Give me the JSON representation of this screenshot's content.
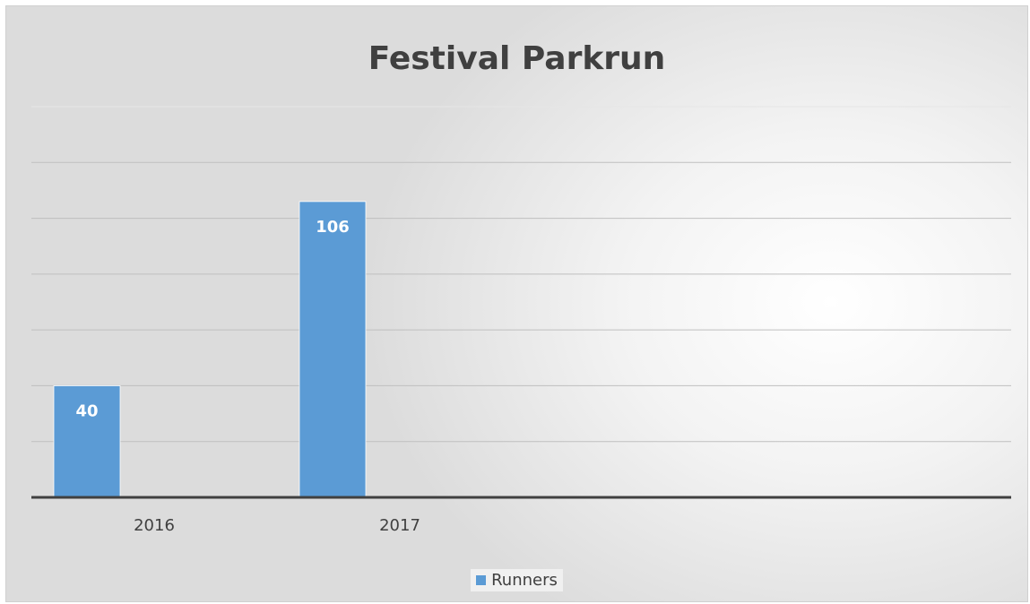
{
  "chart_data": {
    "type": "bar",
    "title": "Festival Parkrun",
    "categories": [
      "2016",
      "2017"
    ],
    "series": [
      {
        "name": "Runners",
        "values": [
          40,
          106
        ],
        "color": "#5B9BD5"
      }
    ],
    "data_labels": [
      "40",
      "106"
    ],
    "ylim": [
      0,
      140
    ],
    "grid": true,
    "y_axis_labels_visible": false,
    "legend_position": "bottom"
  }
}
